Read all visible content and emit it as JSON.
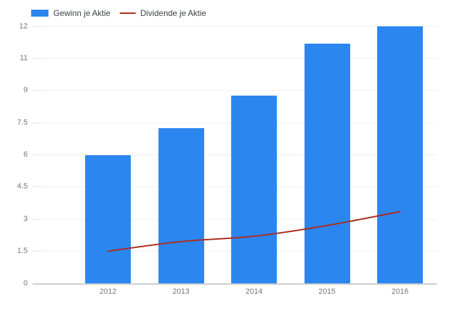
{
  "legend": {
    "series1_label": "Gewinn je Aktie",
    "series2_label": "Dividende je Aktie"
  },
  "colors": {
    "bar": "#2b86f0",
    "line": "#ac2b1f",
    "grid": "#f0f0f0",
    "tick": "#e2e2e2",
    "axis_line": "#cccccc",
    "axis_text": "#757575",
    "legend_text": "#3c4043",
    "background": "#ffffff"
  },
  "chart_data": {
    "type": "bar",
    "subtype": "combo bar+line",
    "title": "",
    "xlabel": "",
    "ylabel": "",
    "categories": [
      "2012",
      "2013",
      "2014",
      "2015",
      "2016"
    ],
    "series": [
      {
        "name": "Gewinn je Aktie",
        "type": "bar",
        "values": [
          6,
          7.25,
          8.75,
          11.2,
          12
        ]
      },
      {
        "name": "Dividende je Aktie",
        "type": "line",
        "values": [
          1.5,
          1.95,
          2.2,
          2.7,
          3.35
        ]
      }
    ],
    "ylim": [
      0,
      12
    ],
    "y_tick_labels": [
      "0",
      "1.5",
      "3",
      "4.5",
      "6",
      "7.5",
      "9",
      "11",
      "12"
    ],
    "grid": true,
    "legend_position": "top-left"
  }
}
